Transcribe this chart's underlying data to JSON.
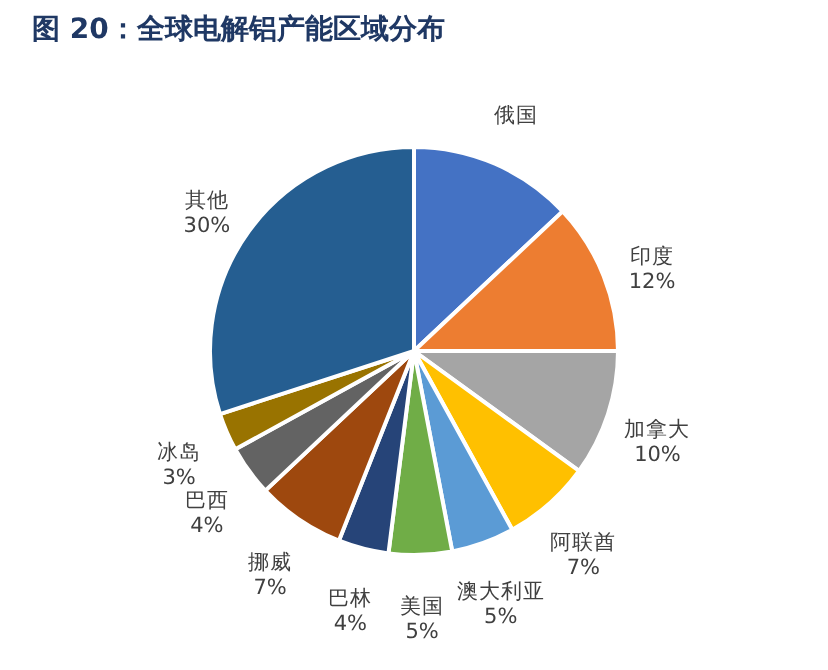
{
  "chart_data": {
    "type": "pie",
    "title": "图 20：全球电解铝产能区域分布",
    "categories": [
      "俄国",
      "印度",
      "加拿大",
      "阿联酋",
      "澳大利亚",
      "美国",
      "巴林",
      "挪威",
      "巴西",
      "冰岛",
      "其他"
    ],
    "values": [
      13,
      12,
      10,
      7,
      5,
      5,
      4,
      7,
      4,
      3,
      30
    ],
    "value_labels": [
      null,
      "12%",
      "10%",
      "7%",
      "5%",
      "5%",
      "4%",
      "7%",
      "4%",
      "3%",
      "30%"
    ],
    "colors": [
      "#4472c4",
      "#ed7d31",
      "#a5a5a5",
      "#ffc000",
      "#5b9bd5",
      "#70ad47",
      "#264478",
      "#9e480e",
      "#636363",
      "#997300",
      "#255e91"
    ],
    "legend": false
  }
}
